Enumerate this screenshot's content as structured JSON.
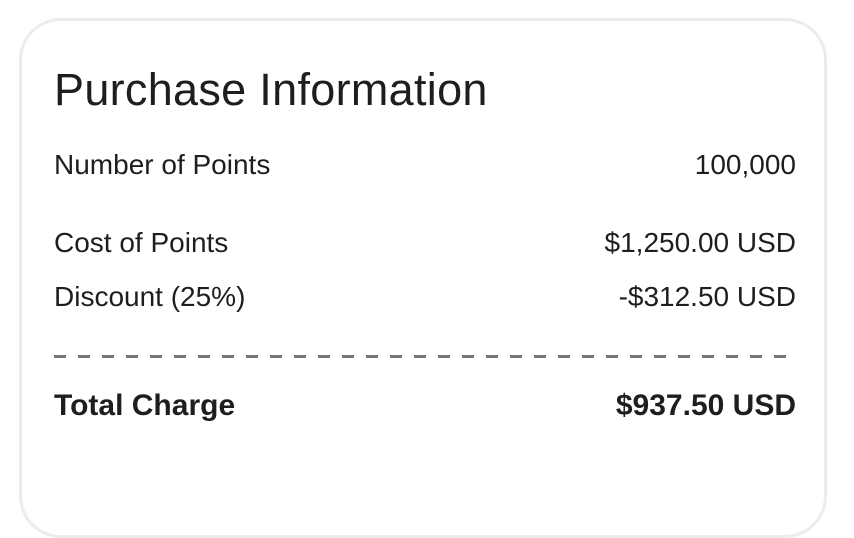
{
  "title": "Purchase Information",
  "rows": [
    {
      "label": "Number of Points",
      "value": "100,000"
    },
    {
      "label": "Cost of Points",
      "value": "$1,250.00 USD"
    },
    {
      "label": "Discount (25%)",
      "value": "-$312.50 USD"
    }
  ],
  "total": {
    "label": "Total Charge",
    "value": "$937.50 USD"
  }
}
